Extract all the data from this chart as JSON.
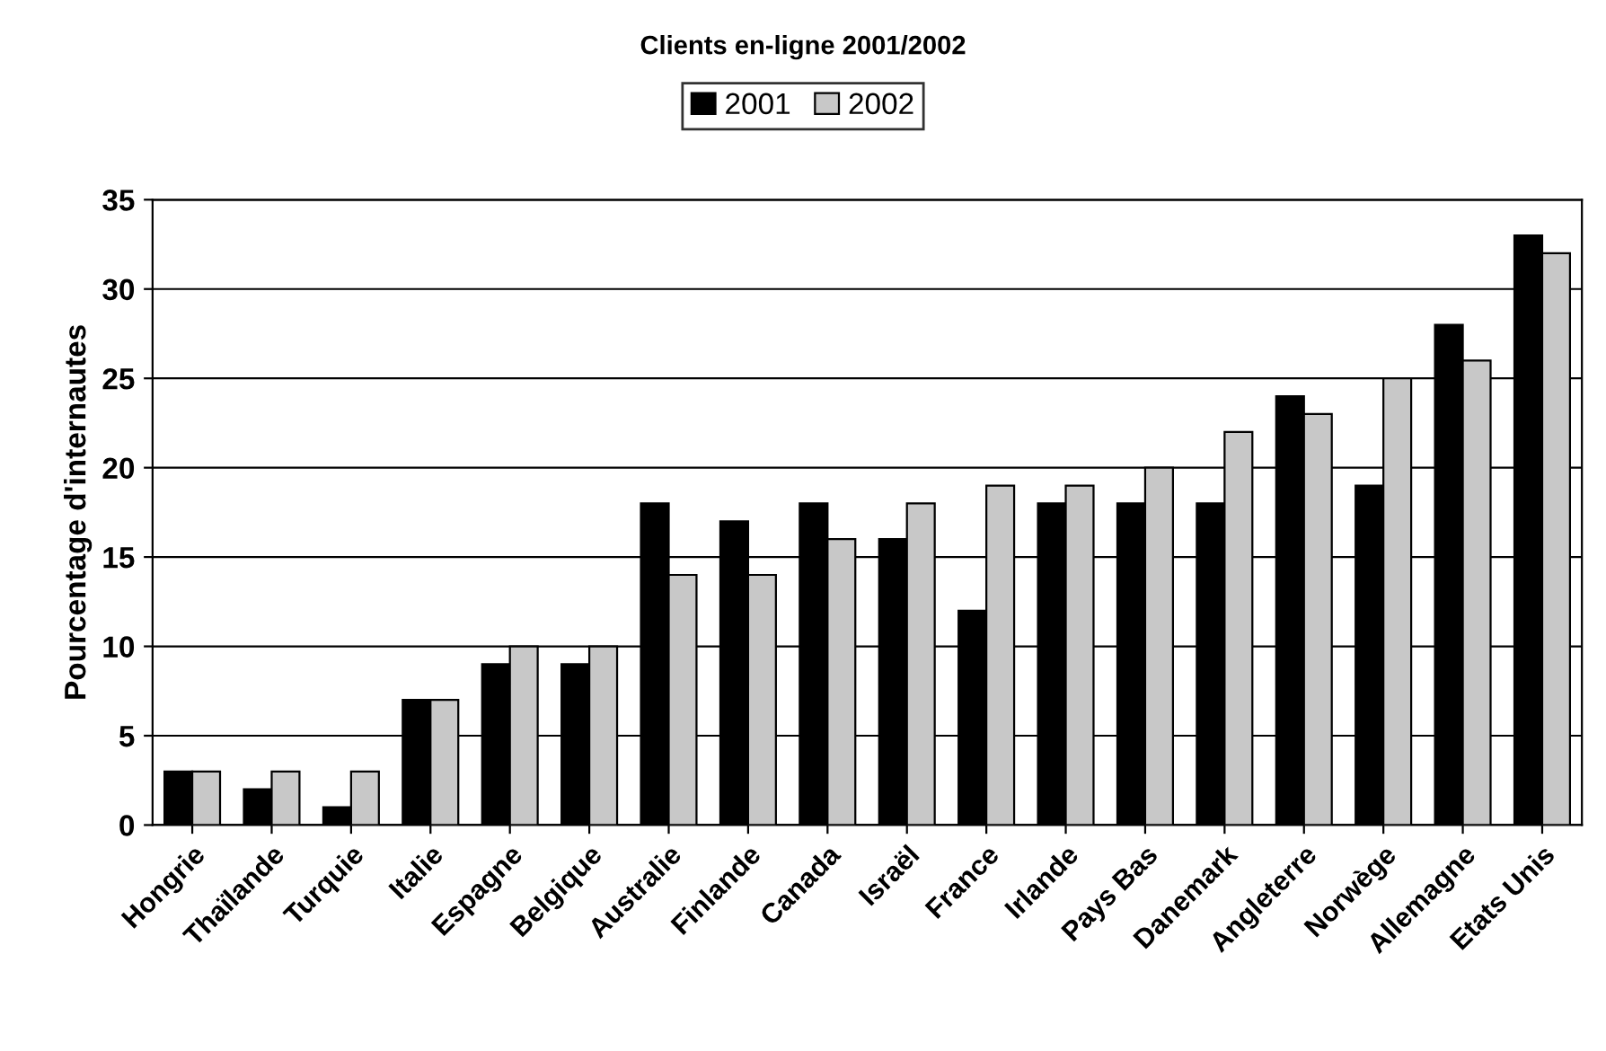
{
  "chart_data": {
    "type": "bar",
    "title": "Clients en-ligne 2001/2002",
    "ylabel": "Pourcentage d'internautes",
    "categories": [
      "Hongrie",
      "Thaïlande",
      "Turquie",
      "Italie",
      "Espagne",
      "Belgique",
      "Australie",
      "Finlande",
      "Canada",
      "Israël",
      "France",
      "Irlande",
      "Pays Bas",
      "Danemark",
      "Angleterre",
      "Norwège",
      "Allemagne",
      "Etats Unis"
    ],
    "series": [
      {
        "name": "2001",
        "color": "#000000",
        "values": [
          3,
          2,
          1,
          7,
          9,
          9,
          18,
          17,
          18,
          16,
          12,
          18,
          18,
          18,
          24,
          19,
          28,
          33
        ]
      },
      {
        "name": "2002",
        "color": "#c8c8c8",
        "values": [
          3,
          3,
          3,
          7,
          10,
          10,
          14,
          14,
          16,
          18,
          19,
          19,
          20,
          22,
          23,
          25,
          26,
          32
        ]
      }
    ],
    "ylim": [
      0,
      35
    ],
    "yticks": [
      0,
      5,
      10,
      15,
      20,
      25,
      30,
      35
    ],
    "grid": "y",
    "legend": "top"
  }
}
